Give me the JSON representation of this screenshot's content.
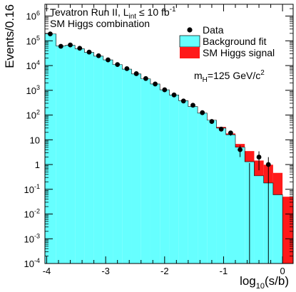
{
  "chart_data": {
    "type": "bar",
    "title": "",
    "annotation_lines": [
      "Tevatron Run II, L",
      "int",
      " ≤ 10 fb",
      "-1",
      "SM Higgs combination"
    ],
    "mass_label": {
      "m": "m",
      "sub": "H",
      "rest": "=125 GeV/c",
      "sup": "2"
    },
    "ylabel": "Events/0.16",
    "xlabel": {
      "pre": "log",
      "sub": "10",
      "post": "(s/b)"
    },
    "xlim": [
      -4.03,
      0.18
    ],
    "ylim": [
      0.0001,
      3000000
    ],
    "yscale": "log",
    "x_ticks": [
      {
        "value": -4,
        "label": "-4"
      },
      {
        "value": -3,
        "label": "-3"
      },
      {
        "value": -2,
        "label": "-2"
      },
      {
        "value": -1,
        "label": "-1"
      },
      {
        "value": 0,
        "label": "0"
      }
    ],
    "y_ticks": [
      {
        "value": 1000000,
        "base": "10",
        "exp": "6"
      },
      {
        "value": 100000,
        "base": "10",
        "exp": "5"
      },
      {
        "value": 10000,
        "base": "10",
        "exp": "4"
      },
      {
        "value": 1000,
        "base": "10",
        "exp": "3"
      },
      {
        "value": 100,
        "base": "10",
        "exp": "2"
      },
      {
        "value": 10,
        "base": "10",
        "exp": ""
      },
      {
        "value": 1,
        "base": "1",
        "exp": ""
      },
      {
        "value": 0.1,
        "base": "10",
        "exp": "-1"
      },
      {
        "value": 0.01,
        "base": "10",
        "exp": "-2"
      },
      {
        "value": 0.001,
        "base": "10",
        "exp": "-3"
      },
      {
        "value": 0.0001,
        "base": "10",
        "exp": "-4"
      }
    ],
    "bin_edges": [
      -4.03,
      -3.84,
      -3.68,
      -3.52,
      -3.36,
      -3.2,
      -3.04,
      -2.88,
      -2.72,
      -2.56,
      -2.4,
      -2.24,
      -2.08,
      -1.92,
      -1.76,
      -1.6,
      -1.44,
      -1.28,
      -1.12,
      -0.96,
      -0.8,
      -0.64,
      -0.48,
      -0.32,
      -0.16,
      0.0,
      0.18
    ],
    "legend": {
      "position": "top-right",
      "entries": [
        {
          "label": "Data",
          "kind": "marker"
        },
        {
          "label": "Background fit",
          "kind": "box",
          "color": "#66ffff"
        },
        {
          "label": "SM Higgs signal",
          "kind": "box",
          "color": "#ff1a1a"
        }
      ]
    },
    "series": [
      {
        "name": "Background fit",
        "color": "#66ffff",
        "values": [
          190000,
          62000,
          66000,
          48000,
          34000,
          24000,
          17000,
          11000,
          7200,
          4600,
          2900,
          1800,
          1050,
          650,
          380,
          220,
          120,
          62,
          30,
          16,
          5,
          1.3,
          0.35,
          0.18,
          0.06,
          0.0001
        ]
      },
      {
        "name": "SM Higgs signal",
        "color": "#ff1a1a",
        "values": [
          0.0001,
          0.0001,
          0.0001,
          0.0001,
          0.0001,
          0.0001,
          0.0001,
          0.0001,
          0.0001,
          0.0001,
          0.0001,
          0.0001,
          0.0001,
          0.0001,
          0.0001,
          0.0001,
          0.0001,
          0.0001,
          3,
          2,
          1.8,
          2.2,
          1.1,
          0.8,
          0.4,
          0.05
        ]
      },
      {
        "name": "Data",
        "color": "#000000",
        "points": [
          {
            "x": -3.94,
            "y": 190000
          },
          {
            "x": -3.76,
            "y": 60000
          },
          {
            "x": -3.6,
            "y": 68000
          },
          {
            "x": -3.44,
            "y": 50000
          },
          {
            "x": -3.28,
            "y": 35000
          },
          {
            "x": -3.12,
            "y": 25000
          },
          {
            "x": -2.96,
            "y": 17000
          },
          {
            "x": -2.8,
            "y": 11000
          },
          {
            "x": -2.64,
            "y": 7500
          },
          {
            "x": -2.48,
            "y": 4700
          },
          {
            "x": -2.32,
            "y": 3000
          },
          {
            "x": -2.16,
            "y": 1800
          },
          {
            "x": -2.0,
            "y": 1050
          },
          {
            "x": -1.84,
            "y": 650
          },
          {
            "x": -1.68,
            "y": 370
          },
          {
            "x": -1.52,
            "y": 250
          },
          {
            "x": -1.36,
            "y": 125
          },
          {
            "x": -1.2,
            "y": 55
          },
          {
            "x": -1.04,
            "y": 27
          },
          {
            "x": -0.88,
            "y": 19
          },
          {
            "x": -0.72,
            "y": 4
          },
          {
            "x": -0.56,
            "y": 0.0001
          },
          {
            "x": -0.4,
            "y": 2
          },
          {
            "x": -0.24,
            "y": 1
          }
        ]
      }
    ]
  }
}
